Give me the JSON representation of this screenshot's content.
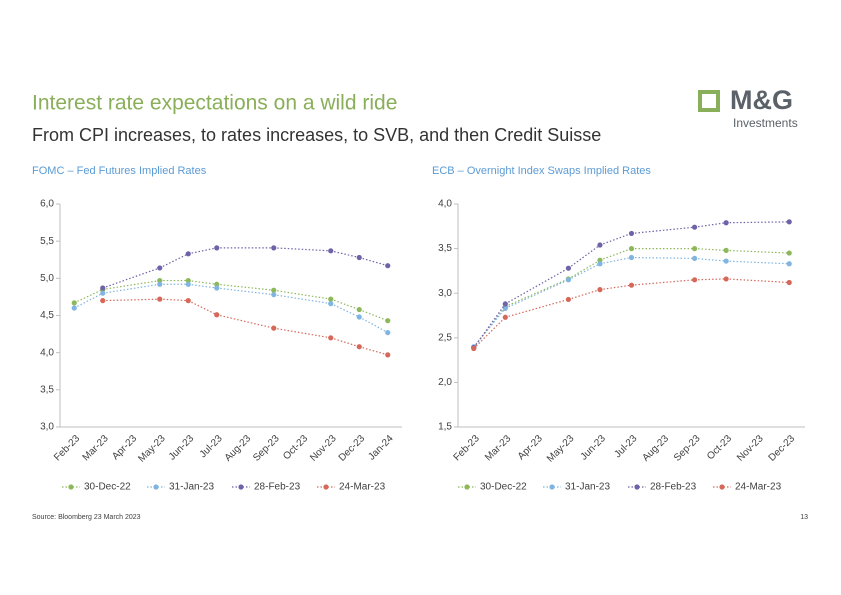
{
  "header": {
    "title": "Interest rate expectations on a wild ride",
    "subtitle": "From CPI increases, to rates increases, to SVB, and then Credit Suisse",
    "logo": "M&G",
    "logo_sub": "Investments"
  },
  "footer": {
    "source": "Source: Bloomberg 23 March 2023",
    "page": "13"
  },
  "chart_data": [
    {
      "type": "line",
      "title": "FOMC – Fed Futures Implied Rates",
      "categories": [
        "Feb-23",
        "Mar-23",
        "Apr-23",
        "May-23",
        "Jun-23",
        "Jul-23",
        "Aug-23",
        "Sep-23",
        "Oct-23",
        "Nov-23",
        "Dec-23",
        "Jan-24"
      ],
      "series": [
        {
          "name": "30-Dec-22",
          "color": "#8db85a",
          "values": [
            4.67,
            4.85,
            null,
            4.97,
            4.97,
            4.92,
            null,
            4.84,
            null,
            4.72,
            4.58,
            4.43
          ]
        },
        {
          "name": "31-Jan-23",
          "color": "#7fb5e0",
          "values": [
            4.6,
            4.8,
            null,
            4.92,
            4.92,
            4.87,
            null,
            4.78,
            null,
            4.66,
            4.48,
            4.27
          ]
        },
        {
          "name": "28-Feb-23",
          "color": "#7062a8",
          "values": [
            null,
            4.87,
            null,
            5.14,
            5.33,
            5.41,
            null,
            5.41,
            null,
            5.37,
            5.28,
            5.17
          ]
        },
        {
          "name": "24-Mar-23",
          "color": "#d6685a",
          "values": [
            null,
            4.7,
            null,
            4.72,
            4.7,
            4.51,
            null,
            4.33,
            null,
            4.2,
            4.08,
            3.97
          ]
        }
      ],
      "ylim": [
        3,
        6
      ],
      "yticks": [
        {
          "value": 3,
          "label": "3,0"
        },
        {
          "value": 3.5,
          "label": "3,5"
        },
        {
          "value": 4,
          "label": "4,0"
        },
        {
          "value": 4.5,
          "label": "4,5"
        },
        {
          "value": 5,
          "label": "5,0"
        },
        {
          "value": 5.5,
          "label": "5,5"
        },
        {
          "value": 6,
          "label": "6,0"
        }
      ],
      "grid": false,
      "legend": "bottom"
    },
    {
      "type": "line",
      "title": "ECB – Overnight Index Swaps Implied Rates",
      "categories": [
        "Feb-23",
        "Mar-23",
        "Apr-23",
        "May-23",
        "Jun-23",
        "Jul-23",
        "Aug-23",
        "Sep-23",
        "Oct-23",
        "Nov-23",
        "Dec-23"
      ],
      "series": [
        {
          "name": "30-Dec-22",
          "color": "#8db85a",
          "values": [
            2.39,
            2.85,
            null,
            3.16,
            3.37,
            3.5,
            null,
            3.5,
            3.48,
            null,
            3.45
          ]
        },
        {
          "name": "31-Jan-23",
          "color": "#7fb5e0",
          "values": [
            2.4,
            2.83,
            null,
            3.15,
            3.33,
            3.4,
            null,
            3.39,
            3.36,
            null,
            3.33
          ]
        },
        {
          "name": "28-Feb-23",
          "color": "#7062a8",
          "values": [
            2.39,
            2.88,
            null,
            3.28,
            3.54,
            3.67,
            null,
            3.74,
            3.79,
            null,
            3.8
          ]
        },
        {
          "name": "24-Mar-23",
          "color": "#d6685a",
          "values": [
            2.38,
            2.73,
            null,
            2.93,
            3.04,
            3.09,
            null,
            3.15,
            3.16,
            null,
            3.12
          ]
        }
      ],
      "ylim": [
        1.5,
        4
      ],
      "yticks": [
        {
          "value": 1.5,
          "label": "1,5"
        },
        {
          "value": 2,
          "label": "2,0"
        },
        {
          "value": 2.5,
          "label": "2,5"
        },
        {
          "value": 3,
          "label": "3,0"
        },
        {
          "value": 3.5,
          "label": "3,5"
        },
        {
          "value": 4,
          "label": "4,0"
        }
      ],
      "grid": false,
      "legend": "bottom"
    }
  ]
}
